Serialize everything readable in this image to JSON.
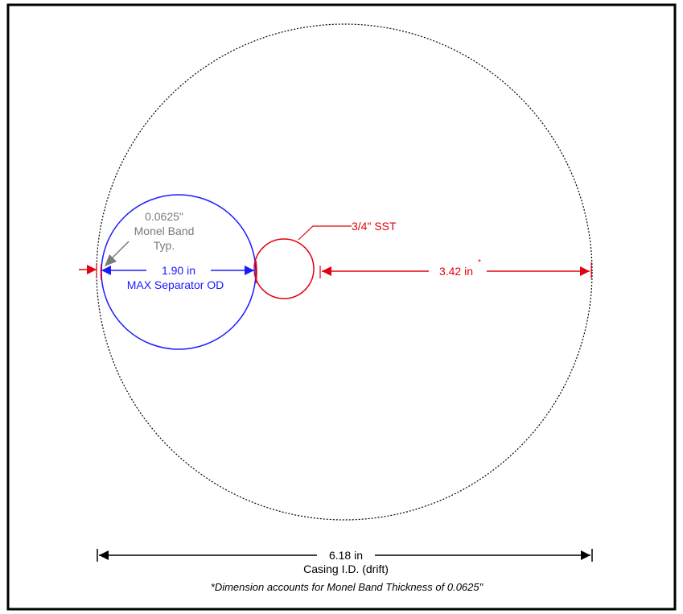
{
  "labels": {
    "monel_band_line1": "0.0625\"",
    "monel_band_line2": "Monel Band",
    "monel_band_line3": "Typ.",
    "sst_label": "3/4\" SST",
    "separator_dim": "1.90 in",
    "separator_name": "MAX Separator OD",
    "clearance_dim": "3.42 in",
    "clearance_star": "*",
    "casing_dim": "6.18 in",
    "casing_name": "Casing I.D. (drift)",
    "footnote": "*Dimension accounts for Monel Band Thickness of 0.0625\""
  },
  "colors": {
    "frame": "#000000",
    "casing": "#000000",
    "separator": "#1a1aff",
    "sst": "#e3000f",
    "monel": "#7a7a7a",
    "dimension": "#e3000f"
  }
}
